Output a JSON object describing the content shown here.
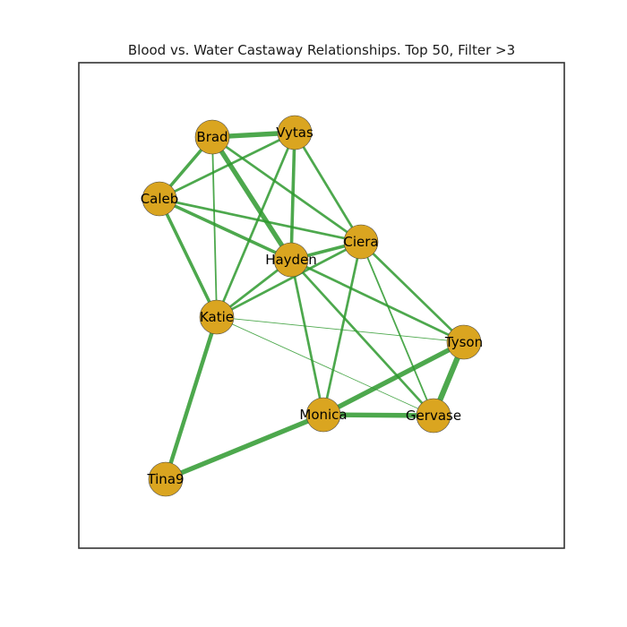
{
  "title": "Blood vs. Water Castaway Relationships. Top 50, Filter >3",
  "colors": {
    "node": "#DAA520",
    "edge": "#2E9A2E",
    "frame": "#333333"
  },
  "nodes": [
    {
      "id": "Brad",
      "label": "Brad"
    },
    {
      "id": "Vytas",
      "label": "Vytas"
    },
    {
      "id": "Caleb",
      "label": "Caleb"
    },
    {
      "id": "Ciera",
      "label": "Ciera"
    },
    {
      "id": "Hayden",
      "label": "Hayden"
    },
    {
      "id": "Katie",
      "label": "Katie"
    },
    {
      "id": "Tyson",
      "label": "Tyson"
    },
    {
      "id": "Monica",
      "label": "Monica"
    },
    {
      "id": "Gervase",
      "label": "Gervase"
    },
    {
      "id": "Tina9",
      "label": "Tina9"
    }
  ],
  "edges": [
    {
      "source": "Brad",
      "target": "Vytas",
      "weight": 6
    },
    {
      "source": "Brad",
      "target": "Caleb",
      "weight": 4
    },
    {
      "source": "Brad",
      "target": "Hayden",
      "weight": 6
    },
    {
      "source": "Brad",
      "target": "Ciera",
      "weight": 3
    },
    {
      "source": "Brad",
      "target": "Katie",
      "weight": 2
    },
    {
      "source": "Vytas",
      "target": "Caleb",
      "weight": 3
    },
    {
      "source": "Vytas",
      "target": "Hayden",
      "weight": 4
    },
    {
      "source": "Vytas",
      "target": "Ciera",
      "weight": 3
    },
    {
      "source": "Vytas",
      "target": "Katie",
      "weight": 3
    },
    {
      "source": "Caleb",
      "target": "Hayden",
      "weight": 4
    },
    {
      "source": "Caleb",
      "target": "Ciera",
      "weight": 3
    },
    {
      "source": "Caleb",
      "target": "Katie",
      "weight": 4
    },
    {
      "source": "Hayden",
      "target": "Ciera",
      "weight": 4
    },
    {
      "source": "Hayden",
      "target": "Katie",
      "weight": 3
    },
    {
      "source": "Hayden",
      "target": "Tyson",
      "weight": 3
    },
    {
      "source": "Hayden",
      "target": "Monica",
      "weight": 3
    },
    {
      "source": "Hayden",
      "target": "Gervase",
      "weight": 3
    },
    {
      "source": "Ciera",
      "target": "Katie",
      "weight": 3
    },
    {
      "source": "Ciera",
      "target": "Tyson",
      "weight": 3
    },
    {
      "source": "Ciera",
      "target": "Monica",
      "weight": 3
    },
    {
      "source": "Ciera",
      "target": "Gervase",
      "weight": 2
    },
    {
      "source": "Katie",
      "target": "Tyson",
      "weight": 1
    },
    {
      "source": "Katie",
      "target": "Gervase",
      "weight": 1
    },
    {
      "source": "Katie",
      "target": "Tina9",
      "weight": 5
    },
    {
      "source": "Tyson",
      "target": "Monica",
      "weight": 6
    },
    {
      "source": "Tyson",
      "target": "Gervase",
      "weight": 7
    },
    {
      "source": "Monica",
      "target": "Gervase",
      "weight": 6
    },
    {
      "source": "Monica",
      "target": "Tina9",
      "weight": 6
    }
  ]
}
